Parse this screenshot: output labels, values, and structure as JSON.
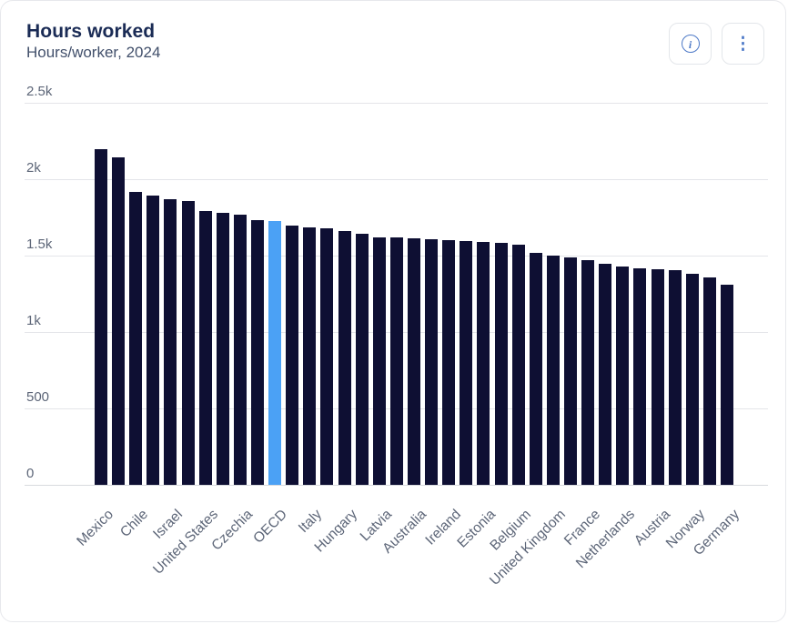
{
  "header": {
    "title": "Hours worked",
    "subtitle": "Hours/worker, 2024"
  },
  "actions": {
    "info_icon": "info-icon",
    "info_glyph": "i",
    "more_icon": "kebab-menu-icon",
    "more_glyph": "⋮"
  },
  "colors": {
    "bar": "#0e0f33",
    "highlight_bar": "#4ba1f5",
    "title": "#1a2b55",
    "subtitle": "#42506b",
    "axis_text": "#5d6678",
    "gridline": "#e4e5e9",
    "baseline": "#d8dade",
    "card_border": "#e7e8ec",
    "button_icon": "#4d79c7",
    "button_border": "#e3e6ea"
  },
  "chart_data": {
    "type": "bar",
    "title": "Hours worked",
    "subtitle": "Hours/worker, 2024",
    "xlabel": "",
    "ylabel": "Hours/worker",
    "ylim": [
      0,
      2500
    ],
    "grid": "horizontal",
    "legend": "none",
    "tick_label_rotation": 45,
    "note": "Only every second bar carries a visible category label; unlabeled bars shown with empty label",
    "y_ticks": [
      {
        "value": 2500,
        "label": "2.5k"
      },
      {
        "value": 2000,
        "label": "2k"
      },
      {
        "value": 1500,
        "label": "1.5k"
      },
      {
        "value": 1000,
        "label": "1k"
      },
      {
        "value": 500,
        "label": "500"
      },
      {
        "value": 0,
        "label": "0"
      }
    ],
    "highlighted_category": "OECD",
    "bars": [
      {
        "label": "Mexico",
        "value": 2195
      },
      {
        "label": "",
        "value": 2140
      },
      {
        "label": "Chile",
        "value": 1915
      },
      {
        "label": "",
        "value": 1890
      },
      {
        "label": "Israel",
        "value": 1870
      },
      {
        "label": "",
        "value": 1855
      },
      {
        "label": "United States",
        "value": 1790
      },
      {
        "label": "",
        "value": 1778
      },
      {
        "label": "Czechia",
        "value": 1770
      },
      {
        "label": "",
        "value": 1730
      },
      {
        "label": "OECD",
        "value": 1725,
        "highlight": true
      },
      {
        "label": "",
        "value": 1695
      },
      {
        "label": "Italy",
        "value": 1685
      },
      {
        "label": "",
        "value": 1680
      },
      {
        "label": "Hungary",
        "value": 1660
      },
      {
        "label": "",
        "value": 1645
      },
      {
        "label": "Latvia",
        "value": 1622
      },
      {
        "label": "",
        "value": 1618
      },
      {
        "label": "Australia",
        "value": 1613
      },
      {
        "label": "",
        "value": 1606
      },
      {
        "label": "Ireland",
        "value": 1603
      },
      {
        "label": "",
        "value": 1597
      },
      {
        "label": "Estonia",
        "value": 1590
      },
      {
        "label": "",
        "value": 1583
      },
      {
        "label": "Belgium",
        "value": 1572
      },
      {
        "label": "",
        "value": 1515
      },
      {
        "label": "United Kingdom",
        "value": 1500
      },
      {
        "label": "",
        "value": 1490
      },
      {
        "label": "France",
        "value": 1472
      },
      {
        "label": "",
        "value": 1445
      },
      {
        "label": "Netherlands",
        "value": 1428
      },
      {
        "label": "",
        "value": 1416
      },
      {
        "label": "Austria",
        "value": 1413
      },
      {
        "label": "",
        "value": 1404
      },
      {
        "label": "Norway",
        "value": 1383
      },
      {
        "label": "",
        "value": 1360
      },
      {
        "label": "Germany",
        "value": 1312
      }
    ]
  }
}
